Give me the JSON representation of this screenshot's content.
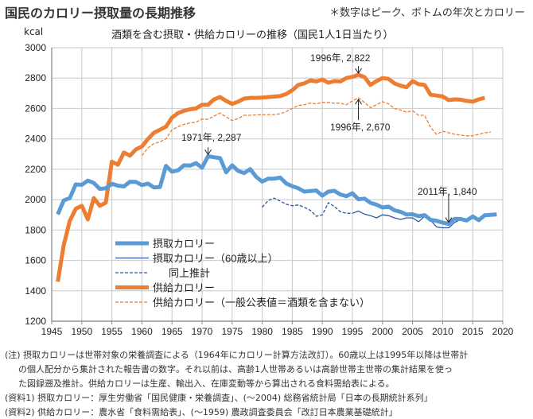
{
  "title": "国民のカロリー摂取量の長期推移",
  "note": "＊数字はピーク、ボトムの年次とカロリー",
  "footnotes": [
    "(注) 摂取カロリーは世帯対象の栄養調査による（1964年にカロリー計算方法改訂）。60歳以上は1995年以降は世帯計",
    "の個人配分から集計された報告書の数字。それ以前は、高齢1人世帯あるいは高齢世帯主世帯の集計結果を使っ",
    "た図録遡及推計。供給カロリーは生産、輸出入、在庫変動等から算出される食料需給表による。",
    "(資料1) 摂取カロリー：厚生労働省「国民健康・栄養調査」、(～2004) 総務省統計局「日本の長期統計系列」",
    "(資料2) 供給カロリー：農水省「食料需給表」、(～1959) 農政調査委員会「改訂日本農業基礎統計」"
  ],
  "chart_data": {
    "type": "line",
    "title": "酒類を含む摂取・供給カロリーの推移（国民1人1日当たり）",
    "ylabel": "kcal",
    "xlim": [
      1945,
      2020
    ],
    "ylim": [
      1200,
      3000
    ],
    "xticks": [
      "1945",
      "1950",
      "1955",
      "1960",
      "1965",
      "1970",
      "1975",
      "1980",
      "1985",
      "1990",
      "1995",
      "2000",
      "2005",
      "2010",
      "2015",
      "2020"
    ],
    "yticks": [
      "1200",
      "1400",
      "1600",
      "1800",
      "2000",
      "2200",
      "2400",
      "2600",
      "2800",
      "3000"
    ],
    "grid": true,
    "legend_position": "bottom-left",
    "colors": {
      "intake": "#5b9bd5",
      "intake60": "#2f55a4",
      "supply": "#ed7d31"
    },
    "series": [
      {
        "name": "摂取カロリー",
        "style": "thick-solid",
        "color": "#5b9bd5",
        "x_start": 1946,
        "values": [
          1903,
          1995,
          2010,
          2100,
          2098,
          2125,
          2110,
          2070,
          2075,
          2104,
          2092,
          2087,
          2118,
          2117,
          2096,
          2106,
          2080,
          2083,
          2222,
          2184,
          2193,
          2226,
          2224,
          2240,
          2210,
          2287,
          2279,
          2273,
          2180,
          2226,
          2189,
          2175,
          2201,
          2150,
          2119,
          2138,
          2138,
          2145,
          2107,
          2088,
          2075,
          2053,
          2057,
          2060,
          2026,
          2053,
          2058,
          2034,
          2023,
          2042,
          2002,
          2007,
          1979,
          1967,
          1948,
          1954,
          1930,
          1920,
          1902,
          1904,
          1891,
          1898,
          1867,
          1861,
          1849,
          1840,
          1874,
          1873,
          1863,
          1889,
          1865,
          1897,
          1900,
          1903
        ]
      },
      {
        "name": "摂取カロリー（60歳以上）",
        "style": "thin-solid",
        "color": "#2f55a4",
        "x_start": 1995,
        "values": [
          1910,
          1925,
          1905,
          1895,
          1880,
          1900,
          1895,
          1880,
          1870,
          1880,
          1880,
          1855,
          1890,
          1865,
          1820,
          1815,
          1815,
          1850,
          1870,
          1860,
          1880,
          1865,
          1900,
          1895,
          1900
        ]
      },
      {
        "name": "同上推計",
        "style": "thin-dashed",
        "color": "#2f55a4",
        "x_start": 1980,
        "values": [
          1950,
          1995,
          2010,
          1990,
          1970,
          1960,
          1965,
          1950,
          1930,
          1890,
          1900,
          1980,
          1955,
          1920,
          1910,
          1910
        ]
      },
      {
        "name": "供給カロリー",
        "style": "thick-solid",
        "color": "#ed7d31",
        "x_start": 1946,
        "values": [
          1460,
          1700,
          1860,
          1940,
          1960,
          1870,
          2010,
          1960,
          1980,
          2250,
          2230,
          2310,
          2290,
          2330,
          2350,
          2400,
          2440,
          2460,
          2480,
          2540,
          2570,
          2585,
          2595,
          2600,
          2625,
          2625,
          2660,
          2675,
          2650,
          2630,
          2645,
          2665,
          2670,
          2670,
          2672,
          2675,
          2678,
          2682,
          2695,
          2720,
          2755,
          2765,
          2785,
          2778,
          2790,
          2770,
          2780,
          2778,
          2800,
          2808,
          2822,
          2807,
          2755,
          2780,
          2800,
          2795,
          2765,
          2750,
          2740,
          2780,
          2760,
          2755,
          2690,
          2685,
          2680,
          2655,
          2660,
          2658,
          2650,
          2645,
          2660,
          2670
        ]
      },
      {
        "name": "供給カロリー（一般公表値＝酒類を含まない）",
        "style": "thin-dashed",
        "color": "#ed7d31",
        "x_start": 1960,
        "values": [
          2290,
          2340,
          2370,
          2380,
          2400,
          2460,
          2480,
          2495,
          2505,
          2510,
          2530,
          2530,
          2550,
          2570,
          2545,
          2520,
          2535,
          2555,
          2555,
          2558,
          2560,
          2560,
          2560,
          2565,
          2580,
          2600,
          2620,
          2625,
          2635,
          2630,
          2640,
          2640,
          2635,
          2635,
          2625,
          2650,
          2670,
          2640,
          2605,
          2625,
          2645,
          2630,
          2600,
          2590,
          2575,
          2585,
          2555,
          2555,
          2475,
          2430,
          2450,
          2440,
          2430,
          2425,
          2420,
          2420,
          2430,
          2440,
          2445
        ]
      }
    ],
    "annotations": [
      {
        "text": "1971年, 2,287",
        "x": 1971,
        "y": 2287,
        "arrow": "down"
      },
      {
        "text": "1996年, 2,822",
        "x": 1996,
        "y": 2822,
        "arrow": "down"
      },
      {
        "text": "1996年, 2,670",
        "x": 1996,
        "y": 2670,
        "arrow": "up"
      },
      {
        "text": "2011年, 1,840",
        "x": 2011,
        "y": 1840,
        "arrow": "down"
      }
    ]
  }
}
